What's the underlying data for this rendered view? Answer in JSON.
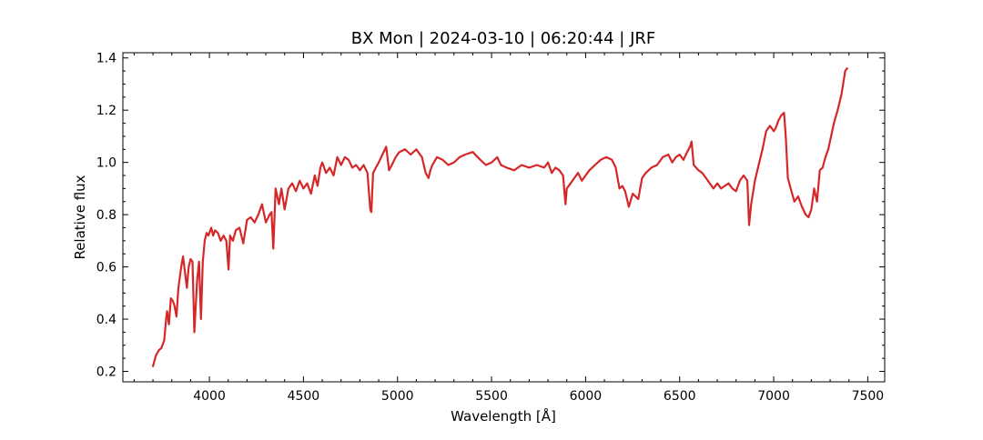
{
  "chart_data": {
    "type": "line",
    "title": "BX Mon | 2024-03-10 | 06:20:44 | JRF",
    "xlabel": "Wavelength [Å]",
    "ylabel": "Relative flux",
    "xlim": [
      3540,
      7590
    ],
    "ylim": [
      0.16,
      1.42
    ],
    "x_ticks": [
      4000,
      4500,
      5000,
      5500,
      6000,
      6500,
      7000,
      7500
    ],
    "x_tick_labels": [
      "4000",
      "4500",
      "5000",
      "5500",
      "6000",
      "6500",
      "7000",
      "7500"
    ],
    "y_ticks": [
      0.2,
      0.4,
      0.6,
      0.8,
      1.0,
      1.2,
      1.4
    ],
    "y_tick_labels": [
      "0.2",
      "0.4",
      "0.6",
      "0.8",
      "1.0",
      "1.2",
      "1.4"
    ],
    "grid": false,
    "color": "#d62728",
    "series": [
      {
        "x": [
          3700,
          3715,
          3730,
          3745,
          3760,
          3770,
          3775,
          3785,
          3795,
          3805,
          3815,
          3825,
          3835,
          3850,
          3860,
          3870,
          3880,
          3890,
          3900,
          3910,
          3920,
          3935,
          3945,
          3955,
          3965,
          3975,
          3985,
          3995,
          4010,
          4020,
          4030,
          4045,
          4060,
          4075,
          4090,
          4102,
          4110,
          4125,
          4140,
          4160,
          4180,
          4200,
          4220,
          4240,
          4260,
          4280,
          4300,
          4320,
          4330,
          4340,
          4352,
          4370,
          4383,
          4400,
          4420,
          4440,
          4460,
          4480,
          4500,
          4520,
          4540,
          4560,
          4575,
          4590,
          4600,
          4620,
          4640,
          4660,
          4680,
          4700,
          4720,
          4740,
          4760,
          4780,
          4800,
          4820,
          4840,
          4855,
          4861,
          4870,
          4885,
          4900,
          4920,
          4940,
          4955,
          4970,
          4990,
          5010,
          5040,
          5070,
          5100,
          5130,
          5150,
          5165,
          5175,
          5185,
          5210,
          5240,
          5270,
          5300,
          5330,
          5360,
          5400,
          5440,
          5470,
          5500,
          5530,
          5550,
          5580,
          5620,
          5660,
          5700,
          5740,
          5780,
          5800,
          5820,
          5840,
          5860,
          5880,
          5893,
          5900,
          5920,
          5940,
          5960,
          5980,
          6000,
          6020,
          6050,
          6080,
          6110,
          6140,
          6160,
          6175,
          6180,
          6195,
          6210,
          6230,
          6250,
          6280,
          6300,
          6320,
          6350,
          6380,
          6410,
          6440,
          6460,
          6480,
          6500,
          6520,
          6540,
          6555,
          6563,
          6575,
          6600,
          6620,
          6640,
          6660,
          6680,
          6700,
          6720,
          6740,
          6760,
          6780,
          6800,
          6820,
          6840,
          6860,
          6869,
          6880,
          6900,
          6920,
          6940,
          6960,
          6980,
          7000,
          7010,
          7025,
          7040,
          7055,
          7064,
          7075,
          7090,
          7110,
          7130,
          7150,
          7170,
          7185,
          7200,
          7215,
          7230,
          7245,
          7260,
          7275,
          7290,
          7305,
          7320,
          7340,
          7360,
          7380,
          7390
        ],
        "y": [
          0.22,
          0.26,
          0.28,
          0.29,
          0.32,
          0.4,
          0.43,
          0.38,
          0.48,
          0.47,
          0.45,
          0.41,
          0.52,
          0.6,
          0.64,
          0.58,
          0.52,
          0.6,
          0.63,
          0.62,
          0.35,
          0.55,
          0.62,
          0.4,
          0.62,
          0.7,
          0.73,
          0.72,
          0.75,
          0.72,
          0.74,
          0.73,
          0.7,
          0.72,
          0.7,
          0.59,
          0.72,
          0.7,
          0.74,
          0.75,
          0.69,
          0.78,
          0.79,
          0.77,
          0.8,
          0.84,
          0.77,
          0.8,
          0.81,
          0.67,
          0.9,
          0.84,
          0.9,
          0.82,
          0.9,
          0.92,
          0.89,
          0.93,
          0.9,
          0.92,
          0.88,
          0.95,
          0.91,
          0.98,
          1.0,
          0.96,
          0.98,
          0.95,
          1.02,
          0.99,
          1.02,
          1.01,
          0.98,
          0.99,
          0.97,
          0.99,
          0.96,
          0.82,
          0.81,
          0.96,
          0.98,
          1.0,
          1.03,
          1.06,
          0.97,
          0.99,
          1.02,
          1.04,
          1.05,
          1.03,
          1.05,
          1.02,
          0.96,
          0.94,
          0.97,
          0.99,
          1.02,
          1.01,
          0.99,
          1.0,
          1.02,
          1.03,
          1.04,
          1.01,
          0.99,
          1.0,
          1.02,
          0.99,
          0.98,
          0.97,
          0.99,
          0.98,
          0.99,
          0.98,
          1.0,
          0.96,
          0.98,
          0.97,
          0.95,
          0.84,
          0.9,
          0.92,
          0.94,
          0.96,
          0.93,
          0.95,
          0.97,
          0.99,
          1.01,
          1.02,
          1.01,
          0.98,
          0.92,
          0.9,
          0.91,
          0.89,
          0.83,
          0.88,
          0.86,
          0.94,
          0.96,
          0.98,
          0.99,
          1.02,
          1.03,
          1.0,
          1.02,
          1.03,
          1.01,
          1.04,
          1.06,
          1.08,
          0.99,
          0.97,
          0.96,
          0.94,
          0.92,
          0.9,
          0.92,
          0.9,
          0.91,
          0.92,
          0.9,
          0.89,
          0.93,
          0.95,
          0.93,
          0.76,
          0.84,
          0.93,
          0.99,
          1.05,
          1.12,
          1.14,
          1.12,
          1.13,
          1.16,
          1.18,
          1.19,
          1.1,
          0.94,
          0.9,
          0.85,
          0.87,
          0.83,
          0.8,
          0.79,
          0.82,
          0.9,
          0.85,
          0.97,
          0.98,
          1.02,
          1.05,
          1.1,
          1.15,
          1.2,
          1.26,
          1.35,
          1.36
        ]
      }
    ]
  }
}
